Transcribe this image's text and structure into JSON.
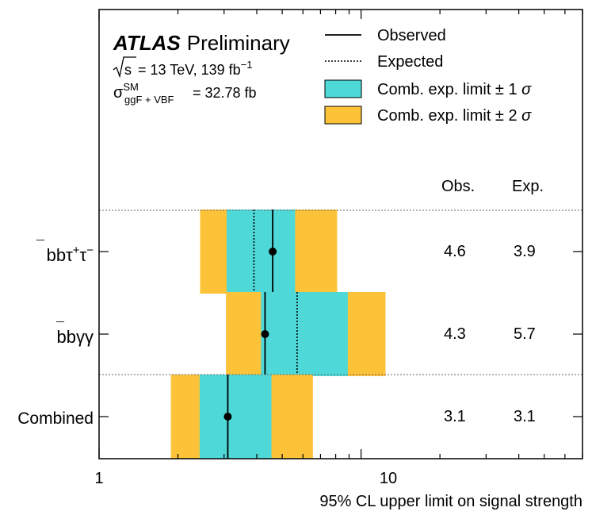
{
  "chart_data": {
    "type": "limit-summary",
    "xscale": "log",
    "xlim": [
      1,
      70
    ],
    "x_tick_labels": [
      {
        "value": 1,
        "label": "1"
      },
      {
        "value": 10,
        "label": "10"
      }
    ],
    "xlabel": "95% CL upper limit on signal strength",
    "experiment": "ATLAS",
    "status": "Preliminary",
    "energy_lumi": "= 13 TeV, 139 fb",
    "sqrt_s_symbol": "√s",
    "lumi_exponent": "−1",
    "sigma_label": "= 32.78 fb",
    "sigma_symbol": "σ",
    "sigma_sup": "SM",
    "sigma_sub": "ggF + VBF",
    "legend": {
      "observed": "Observed",
      "expected": "Expected",
      "band1": "Comb. exp. limit ± 1",
      "band2": "Comb. exp. limit ± 2",
      "sigma": "σ"
    },
    "column_headers": {
      "obs": "Obs.",
      "exp": "Exp."
    },
    "colors": {
      "band1": "#4fd8d8",
      "band2": "#fdc338"
    },
    "rows": [
      {
        "label": "bb̄τ⁺τ⁻",
        "label_parts": {
          "bb": "bb",
          "bar": "¯",
          "tau": "τ",
          "plus": "+",
          "tau2": "τ",
          "minus": "−"
        },
        "observed": 4.6,
        "expected": 3.9,
        "band1": [
          3.07,
          5.6
        ],
        "band2": [
          2.43,
          8.1
        ],
        "obs_text": "4.6",
        "exp_text": "3.9"
      },
      {
        "label": "bb̄γγ",
        "label_parts": {
          "bb": "bb",
          "bar": "¯",
          "gg": "γγ"
        },
        "observed": 4.3,
        "expected": 5.7,
        "band1": [
          4.15,
          8.9
        ],
        "band2": [
          3.05,
          12.4
        ],
        "obs_text": "4.3",
        "exp_text": "5.7"
      },
      {
        "label": "Combined",
        "observed": 3.1,
        "expected": 3.1,
        "band1": [
          2.42,
          4.55
        ],
        "band2": [
          1.88,
          6.55
        ],
        "obs_text": "3.1",
        "exp_text": "3.1"
      }
    ]
  }
}
